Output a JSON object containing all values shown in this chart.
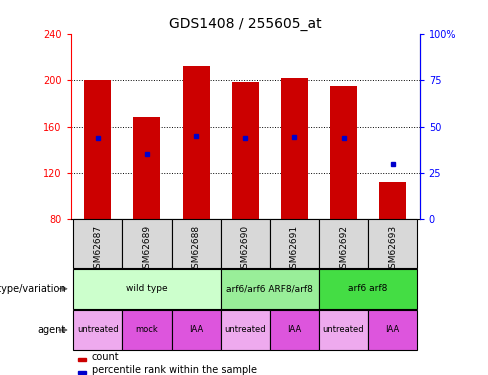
{
  "title": "GDS1408 / 255605_at",
  "samples": [
    "GSM62687",
    "GSM62689",
    "GSM62688",
    "GSM62690",
    "GSM62691",
    "GSM62692",
    "GSM62693"
  ],
  "bar_values": [
    200,
    168,
    212,
    198,
    202,
    195,
    112
  ],
  "bar_base": 80,
  "percentile_values": [
    150,
    136,
    152,
    150,
    151,
    150,
    128
  ],
  "ylim": [
    80,
    240
  ],
  "y2lim": [
    0,
    100
  ],
  "yticks": [
    80,
    120,
    160,
    200,
    240
  ],
  "y2ticks": [
    0,
    25,
    50,
    75,
    100
  ],
  "bar_color": "#cc0000",
  "percentile_color": "#0000cc",
  "background_color": "#ffffff",
  "genotype_groups": [
    {
      "label": "wild type",
      "start": 0,
      "end": 2,
      "color": "#ccffcc"
    },
    {
      "label": "arf6/arf6 ARF8/arf8",
      "start": 3,
      "end": 4,
      "color": "#99ee99"
    },
    {
      "label": "arf6 arf8",
      "start": 5,
      "end": 6,
      "color": "#44dd44"
    }
  ],
  "agent_groups": [
    {
      "label": "untreated",
      "start": 0,
      "end": 0,
      "color": "#eeaaee"
    },
    {
      "label": "mock",
      "start": 1,
      "end": 1,
      "color": "#dd55dd"
    },
    {
      "label": "IAA",
      "start": 2,
      "end": 2,
      "color": "#dd55dd"
    },
    {
      "label": "untreated",
      "start": 3,
      "end": 3,
      "color": "#eeaaee"
    },
    {
      "label": "IAA",
      "start": 4,
      "end": 4,
      "color": "#dd55dd"
    },
    {
      "label": "untreated",
      "start": 5,
      "end": 5,
      "color": "#eeaaee"
    },
    {
      "label": "IAA",
      "start": 6,
      "end": 6,
      "color": "#dd55dd"
    }
  ],
  "title_fontsize": 10,
  "tick_fontsize": 7,
  "sample_fontsize": 6.5,
  "row_fontsize": 7,
  "legend_fontsize": 7
}
